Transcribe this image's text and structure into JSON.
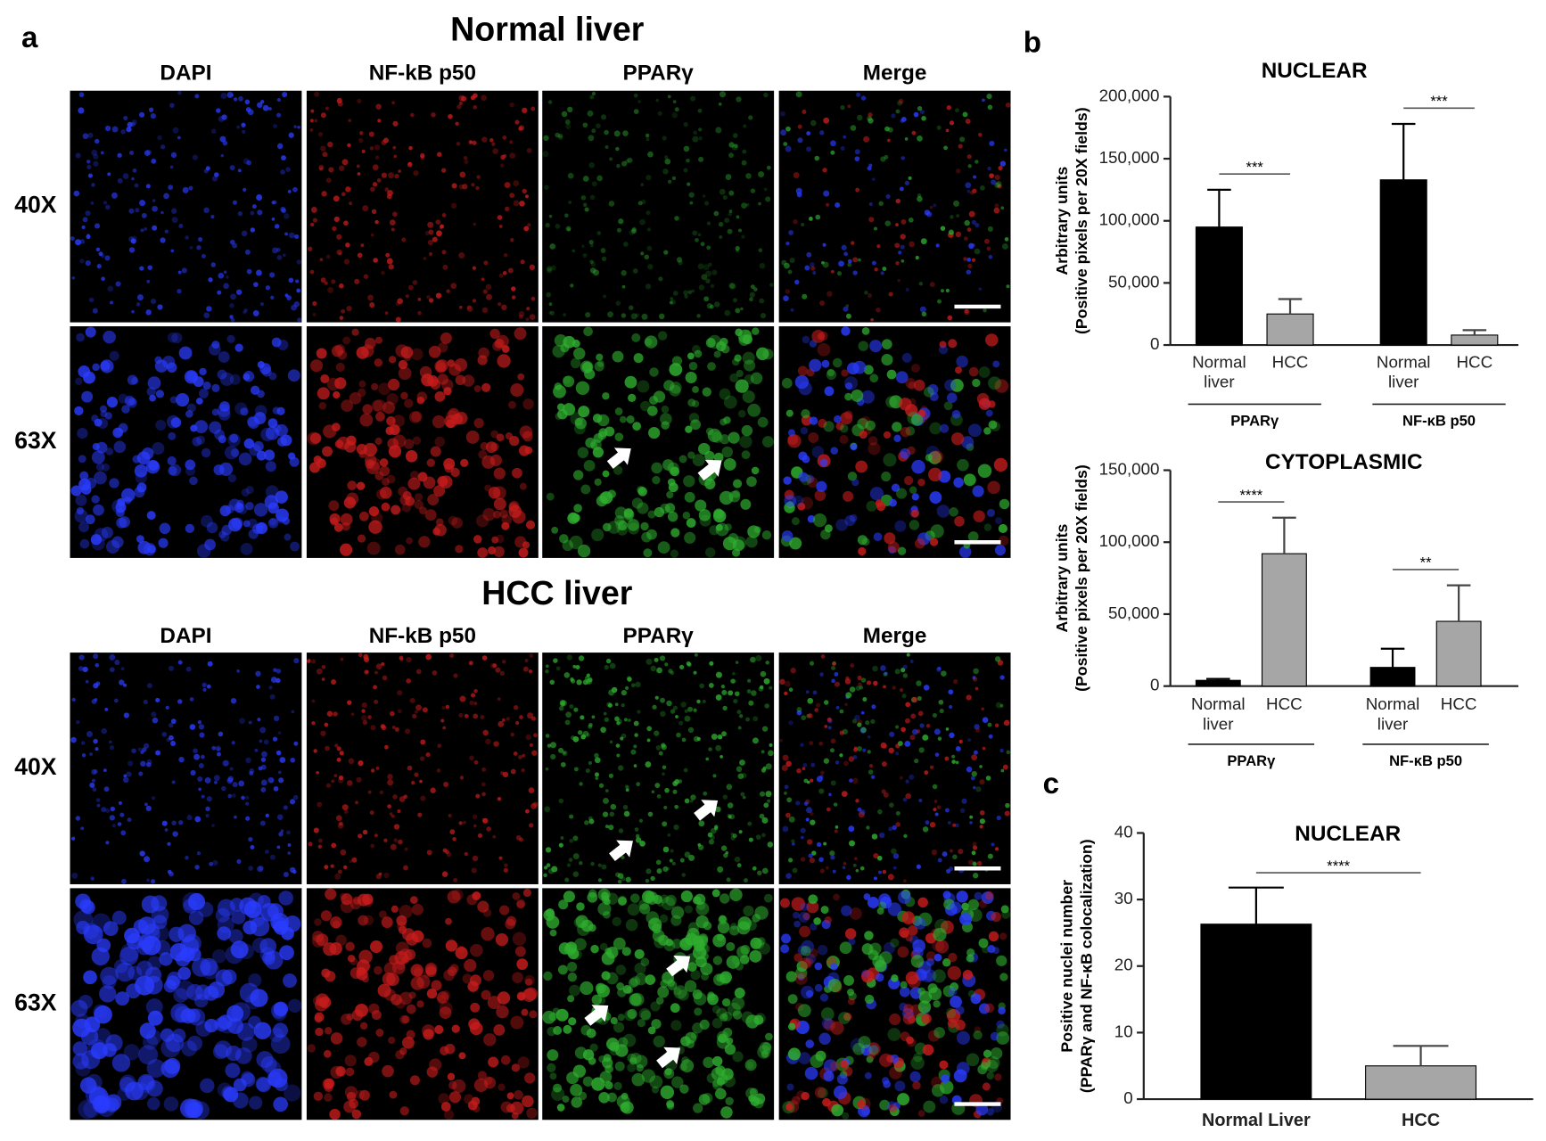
{
  "panel_a": {
    "label": "a",
    "sections": [
      {
        "title": "Normal liver",
        "columns": [
          "DAPI",
          "NF-kB p50",
          "PPARγ",
          "Merge"
        ],
        "rows": [
          "40X",
          "63X"
        ]
      },
      {
        "title": "HCC liver",
        "columns": [
          "DAPI",
          "NF-kB p50",
          "PPARγ",
          "Merge"
        ],
        "rows": [
          "40X",
          "63X"
        ]
      }
    ]
  },
  "chart_data": [
    {
      "type": "bar",
      "panel": "b",
      "title": "NUCLEAR",
      "ylabel": [
        "Arbitrary units",
        "(Positive pixels per 20X fields)"
      ],
      "ylim": [
        0,
        200000
      ],
      "yticks": [
        0,
        {
          "value": 50000,
          "label": "50,000"
        },
        {
          "value": 100000,
          "label": "100,000"
        },
        {
          "value": 150000,
          "label": "150,000"
        },
        {
          "value": 200000,
          "label": "200,000"
        }
      ],
      "groups": [
        {
          "name": "PPARγ",
          "categories": [
            "Normal liver",
            "HCC"
          ],
          "values": [
            95000,
            25000
          ],
          "errors": [
            30000,
            12000
          ],
          "colors": [
            "#000000",
            "#a6a6a6"
          ],
          "significance": "***"
        },
        {
          "name": "NF-κB p50",
          "categories": [
            "Normal liver",
            "HCC"
          ],
          "values": [
            133000,
            8000
          ],
          "errors": [
            45000,
            4000
          ],
          "colors": [
            "#000000",
            "#a6a6a6"
          ],
          "significance": "***"
        }
      ]
    },
    {
      "type": "bar",
      "title": "CYTOPLASMIC",
      "ylabel": [
        "Arbitrary units",
        "(Positive pixels per 20X fields)"
      ],
      "ylim": [
        0,
        150000
      ],
      "yticks": [
        0,
        {
          "value": 50000,
          "label": "50,000"
        },
        {
          "value": 100000,
          "label": "100,000"
        },
        {
          "value": 150000,
          "label": "150,000"
        }
      ],
      "groups": [
        {
          "name": "PPARγ",
          "categories": [
            "Normal liver",
            "HCC"
          ],
          "values": [
            4000,
            92000
          ],
          "errors": [
            1000,
            25000
          ],
          "colors": [
            "#000000",
            "#a6a6a6"
          ],
          "significance": "****"
        },
        {
          "name": "NF-κB p50",
          "categories": [
            "Normal liver",
            "HCC"
          ],
          "values": [
            13000,
            45000
          ],
          "errors": [
            13000,
            25000
          ],
          "colors": [
            "#000000",
            "#a6a6a6"
          ],
          "significance": "**"
        }
      ]
    },
    {
      "type": "bar",
      "panel": "c",
      "title": "NUCLEAR",
      "ylabel": [
        "Positive nuclei number",
        "(PPARγ and NF-κB colocalization)"
      ],
      "ylim": [
        0,
        40
      ],
      "yticks": [
        0,
        10,
        20,
        30,
        40
      ],
      "groups": [
        {
          "categories": [
            "Normal Liver",
            "HCC"
          ],
          "values": [
            26.3,
            5
          ],
          "errors": [
            5.5,
            3
          ],
          "colors": [
            "#000000",
            "#a6a6a6"
          ],
          "significance": "****"
        }
      ]
    }
  ]
}
